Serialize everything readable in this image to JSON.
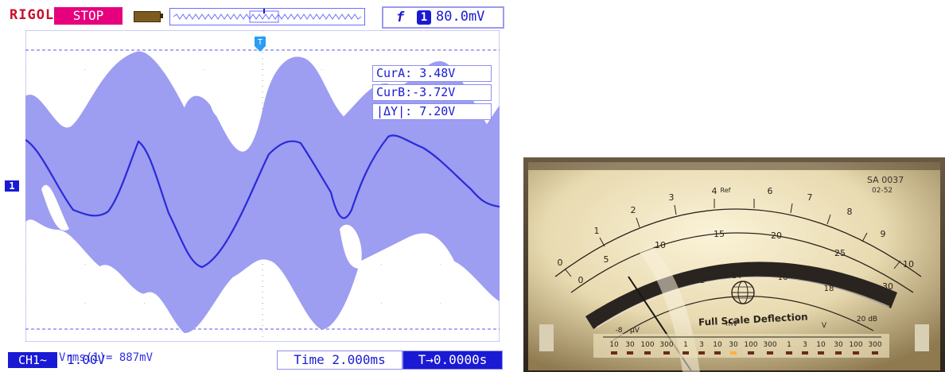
{
  "oscilloscope": {
    "brand": "RIGOL",
    "run_state": "STOP",
    "trigger": {
      "edge_symbol": "f",
      "channel": "1",
      "level": "80.0mV"
    },
    "cursors": [
      {
        "label": "CurA:",
        "value": "3.48V"
      },
      {
        "label": "CurB:",
        "value": "-3.72V"
      },
      {
        "label": "|ΔY|:",
        "value": "7.20V"
      }
    ],
    "measurement": "Vrms(1)= 887mV",
    "channel": {
      "name": "CH1",
      "coupling": "~",
      "scale": "1.00V",
      "marker": "1"
    },
    "timebase": "Time 2.000ms",
    "trigger_offset": "T→0.0000s",
    "trigger_marker": "T",
    "colors": {
      "trace": "#2a2ad8",
      "persistence": "#9d9df2",
      "ui_accent": "#1a1ad4",
      "stop_badge": "#e6007e",
      "brand": "#c8102e"
    }
  },
  "meter": {
    "model": "SA 0037",
    "code": "02-52",
    "ref_label": "Ref",
    "caption": "Full Scale Deflection",
    "scale_top": [
      "0",
      "1",
      "2",
      "3",
      "4",
      "5",
      "6",
      "7",
      "8",
      "9",
      "10"
    ],
    "scale_middle": [
      "0",
      "5",
      "10",
      "15",
      "20",
      "25",
      "30"
    ],
    "scale_db": [
      "-8",
      "10",
      "12",
      "14",
      "16",
      "18",
      "20 dB"
    ],
    "range_groups": {
      "uv": "µV",
      "mv": "mV",
      "v": "V"
    },
    "range_values": [
      "10",
      "30",
      "100",
      "300",
      "1",
      "3",
      "10",
      "30",
      "100",
      "300",
      "1",
      "3",
      "10",
      "30",
      "100",
      "300"
    ]
  }
}
